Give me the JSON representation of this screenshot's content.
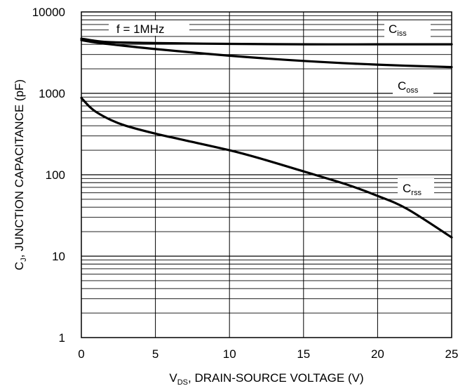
{
  "chart_data": {
    "type": "line",
    "xlabel_main": "V",
    "xlabel_sub": "DS",
    "xlabel_rest": ", DRAIN-SOURCE VOLTAGE (V)",
    "ylabel_main": "C",
    "ylabel_sub": "J",
    "ylabel_rest": ", JUNCTION CAPACITANCE (pF)",
    "xlim": [
      0,
      25
    ],
    "ylim": [
      1,
      10000
    ],
    "yscale": "log",
    "grid": true,
    "xticks": [
      "0",
      "5",
      "10",
      "15",
      "20",
      "25"
    ],
    "yticks": [
      "1",
      "10",
      "100",
      "1000",
      "10000"
    ],
    "annotation": "f = 1MHz",
    "series": [
      {
        "name_main": "C",
        "name_sub": "iss",
        "x": [
          0,
          1,
          2,
          5,
          10,
          15,
          20,
          25
        ],
        "y": [
          4700,
          4400,
          4250,
          4150,
          4050,
          4000,
          4000,
          4000
        ]
      },
      {
        "name_main": "C",
        "name_sub": "oss",
        "x": [
          0,
          1,
          2,
          5,
          10,
          15,
          20,
          25
        ],
        "y": [
          4500,
          4200,
          4000,
          3500,
          2900,
          2500,
          2250,
          2100
        ]
      },
      {
        "name_main": "C",
        "name_sub": "rss",
        "x": [
          0,
          0.5,
          1,
          2,
          3,
          5,
          7,
          10,
          12,
          15,
          18,
          20,
          22,
          25
        ],
        "y": [
          880,
          700,
          590,
          470,
          400,
          320,
          265,
          200,
          160,
          110,
          75,
          55,
          38,
          17
        ]
      }
    ]
  }
}
